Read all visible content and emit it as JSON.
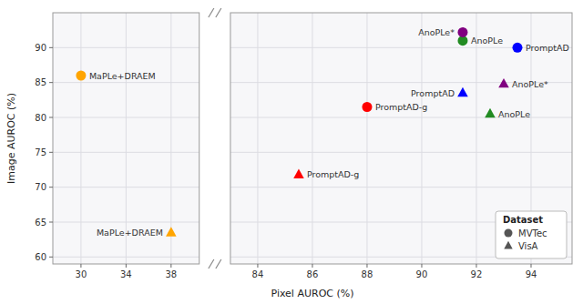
{
  "chart_data": {
    "type": "scatter",
    "xlabel": "Pixel AUROC (%)",
    "ylabel": "Image AUROC (%)",
    "xlim": [
      [
        27.5,
        40.5
      ],
      [
        83.0,
        95.5
      ]
    ],
    "xticks": [
      [
        30,
        34,
        38
      ],
      [
        84,
        86,
        88,
        90,
        92,
        94
      ]
    ],
    "ylim": [
      59,
      95
    ],
    "yticks": [
      60,
      65,
      70,
      75,
      80,
      85,
      90
    ],
    "grid": true,
    "legend": "lower right",
    "legend_title": "Dataset",
    "series": [
      {
        "name": "MVTec",
        "marker": "circle",
        "x": [
          30.0,
          88.0,
          93.5,
          91.5,
          91.5
        ],
        "values": [
          86.0,
          81.5,
          90.0,
          91.0,
          92.2
        ],
        "colors": [
          "#FFA500",
          "#FF0000",
          "#0000FF",
          "#228B22",
          "#800080"
        ],
        "labels": [
          "MaPLe+DRAEM",
          "PromptAD-g",
          "PromptAD",
          "AnoPLe",
          "AnoPLe*"
        ]
      },
      {
        "name": "VisA",
        "marker": "triangle",
        "x": [
          38.0,
          85.5,
          91.5,
          92.5,
          93.0
        ],
        "values": [
          63.5,
          71.8,
          83.5,
          80.5,
          84.8
        ],
        "colors": [
          "#FFA500",
          "#FF0000",
          "#0000FF",
          "#228B22",
          "#800080"
        ],
        "labels": [
          "MaPLe+DRAEM",
          "PromptAD-g",
          "PromptAD",
          "AnoPLe",
          "AnoPLe*"
        ]
      }
    ]
  }
}
